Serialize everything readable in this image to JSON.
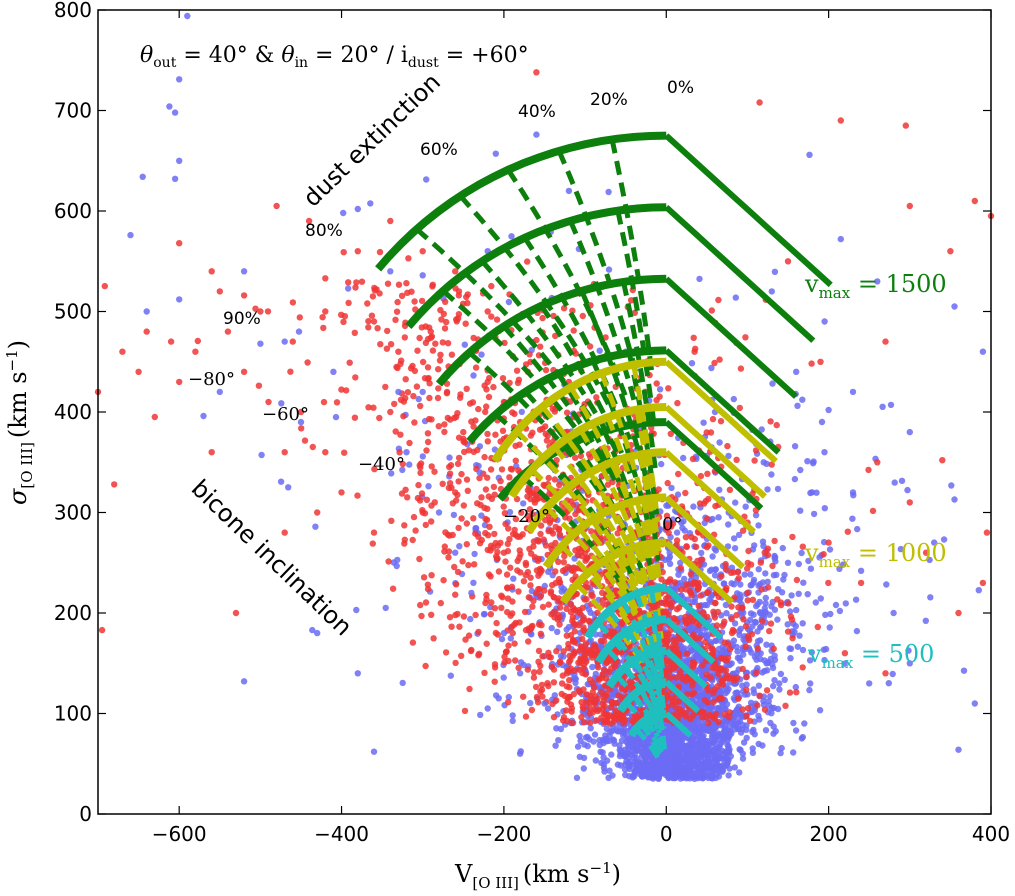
{
  "chart_data": {
    "type": "scatter",
    "title": "θout = 40° & θin = 20° / idust = +60°",
    "title_parts": {
      "a": "θ",
      "a_sub": "out",
      "b": " = 40° & ",
      "c": "θ",
      "c_sub": "in",
      "d": " = 20° / i",
      "d_sub": "dust",
      "e": " = +60°"
    },
    "xlabel": {
      "main": "V",
      "sub": "[O III]",
      "unit": "(km s",
      "sup": "−1",
      "close": ")"
    },
    "ylabel": {
      "main": "σ",
      "sub": "[O III]",
      "unit": "(km s",
      "sup": "−1",
      "close": ")"
    },
    "xlim": [
      -700,
      400
    ],
    "ylim": [
      0,
      800
    ],
    "xticks": [
      -600,
      -400,
      -200,
      0,
      200,
      400
    ],
    "xtick_labels": [
      "−600",
      "−400",
      "−200",
      "0",
      "200",
      "400"
    ],
    "yticks": [
      0,
      100,
      200,
      300,
      400,
      500,
      600,
      700,
      800
    ],
    "ytick_labels": [
      "0",
      "100",
      "200",
      "300",
      "400",
      "500",
      "600",
      "700",
      "800"
    ],
    "scatter_colors": {
      "blue": "#6b6bf5",
      "red": "#f03535"
    },
    "scatter_points": {
      "blue": [
        [
          -612,
          704
        ],
        [
          -590,
          794
        ],
        [
          -600,
          731
        ],
        [
          -645,
          634
        ],
        [
          -600,
          650
        ],
        [
          -605,
          632
        ],
        [
          -660,
          576
        ],
        [
          -398,
          598
        ],
        [
          -380,
          602
        ],
        [
          -260,
          612
        ],
        [
          -210,
          657
        ],
        [
          -160,
          676
        ],
        [
          -300,
          536
        ],
        [
          -430,
          180
        ],
        [
          -520,
          132
        ],
        [
          -570,
          396
        ],
        [
          -600,
          512
        ],
        [
          -500,
          468
        ],
        [
          -470,
          470
        ],
        [
          -330,
          420
        ],
        [
          -280,
          300
        ],
        [
          -260,
          260
        ],
        [
          -240,
          220
        ],
        [
          -200,
          180
        ],
        [
          -180,
          140
        ],
        [
          -150,
          110
        ],
        [
          -360,
          62
        ],
        [
          -110,
          36
        ],
        [
          300,
          150
        ],
        [
          360,
          64
        ],
        [
          390,
          460
        ],
        [
          355,
          505
        ],
        [
          215,
          572
        ],
        [
          195,
          490
        ],
        [
          200,
          402
        ],
        [
          230,
          420
        ],
        [
          300,
          380
        ],
        [
          160,
          440
        ],
        [
          130,
          520
        ],
        [
          150,
          250
        ],
        [
          240,
          242
        ],
        [
          250,
          130
        ],
        [
          260,
          530
        ],
        [
          -380,
          140
        ],
        [
          -220,
          105
        ],
        [
          -180,
          60
        ],
        [
          170,
          90
        ],
        [
          330,
          270
        ],
        [
          -320,
          360
        ],
        [
          -410,
          440
        ],
        [
          -450,
          390
        ],
        [
          -550,
          420
        ],
        [
          -640,
          500
        ],
        [
          -520,
          540
        ],
        [
          -340,
          540
        ],
        [
          -220,
          560
        ],
        [
          -120,
          620
        ],
        [
          -50,
          460
        ],
        [
          60,
          400
        ],
        [
          120,
          350
        ],
        [
          230,
          320
        ],
        [
          280,
          200
        ],
        [
          380,
          110
        ],
        [
          -230,
          340
        ],
        [
          -300,
          420
        ]
      ],
      "red": [
        [
          -160,
          738
        ],
        [
          115,
          708
        ],
        [
          295,
          685
        ],
        [
          215,
          690
        ],
        [
          -700,
          420
        ],
        [
          -695,
          183
        ],
        [
          -680,
          328
        ],
        [
          -670,
          460
        ],
        [
          -650,
          440
        ],
        [
          -630,
          395
        ],
        [
          -640,
          480
        ],
        [
          -610,
          470
        ],
        [
          -600,
          568
        ],
        [
          -580,
          460
        ],
        [
          -550,
          520
        ],
        [
          -560,
          540
        ],
        [
          -520,
          516
        ],
        [
          -480,
          605
        ],
        [
          -440,
          590
        ],
        [
          -420,
          533
        ],
        [
          -520,
          440
        ],
        [
          -490,
          410
        ],
        [
          -450,
          400
        ],
        [
          -470,
          360
        ],
        [
          -420,
          360
        ],
        [
          -400,
          320
        ],
        [
          -360,
          280
        ],
        [
          -340,
          400
        ],
        [
          -300,
          300
        ],
        [
          -260,
          320
        ],
        [
          -240,
          460
        ],
        [
          -200,
          260
        ],
        [
          -180,
          340
        ],
        [
          -160,
          220
        ],
        [
          -360,
          490
        ],
        [
          -330,
          460
        ],
        [
          -310,
          510
        ],
        [
          -290,
          480
        ],
        [
          -270,
          420
        ],
        [
          -250,
          380
        ],
        [
          -220,
          430
        ],
        [
          -200,
          410
        ],
        [
          -180,
          390
        ],
        [
          -140,
          370
        ],
        [
          -120,
          330
        ],
        [
          -100,
          300
        ],
        [
          -80,
          270
        ],
        [
          -60,
          240
        ],
        [
          -40,
          280
        ],
        [
          -20,
          300
        ],
        [
          20,
          260
        ],
        [
          40,
          230
        ],
        [
          60,
          210
        ],
        [
          80,
          240
        ],
        [
          100,
          220
        ],
        [
          -530,
          200
        ],
        [
          -470,
          280
        ],
        [
          -430,
          300
        ],
        [
          260,
          350
        ],
        [
          320,
          260
        ],
        [
          340,
          352
        ],
        [
          360,
          200
        ],
        [
          390,
          230
        ],
        [
          395,
          280
        ],
        [
          400,
          595
        ],
        [
          380,
          610
        ],
        [
          350,
          560
        ],
        [
          300,
          605
        ],
        [
          270,
          470
        ],
        [
          150,
          550
        ],
        [
          190,
          450
        ],
        [
          200,
          270
        ],
        [
          220,
          160
        ],
        [
          270,
          140
        ],
        [
          300,
          310
        ],
        [
          240,
          230
        ],
        [
          -120,
          430
        ],
        [
          -80,
          380
        ],
        [
          -140,
          300
        ],
        [
          -100,
          260
        ],
        [
          -60,
          350
        ],
        [
          -20,
          340
        ],
        [
          20,
          300
        ],
        [
          40,
          280
        ],
        [
          -220,
          500
        ],
        [
          -260,
          540
        ],
        [
          -300,
          560
        ],
        [
          -340,
          590
        ],
        [
          -380,
          560
        ],
        [
          -420,
          500
        ],
        [
          -460,
          470
        ],
        [
          -500,
          500
        ],
        [
          -540,
          480
        ],
        [
          -560,
          360
        ],
        [
          -600,
          430
        ]
      ]
    },
    "series": [
      {
        "name": "vmax = 1500",
        "color": "#0d7f0d",
        "label_v": "v",
        "label_sub": "max",
        "label_rest": " = 1500",
        "r_outer": 675,
        "r_inner": 390,
        "v_scale": 0.7,
        "v_min": 0,
        "v_max": 40
      },
      {
        "name": "vmax = 1000",
        "color": "#bfbf00",
        "label_v": "v",
        "label_sub": "max",
        "label_rest": " = 1000",
        "r_outer": 450,
        "r_inner": 270,
        "v_scale": 0.6,
        "v_min": 0,
        "v_max": 20
      },
      {
        "name": "vmax = 500",
        "color": "#20bfbf",
        "label_v": "v",
        "label_sub": "max",
        "label_rest": " = 500",
        "r_outer": 225,
        "r_inner": 100,
        "v_scale": 0.55,
        "v_min": 0,
        "v_max": 20
      }
    ],
    "annotations": {
      "dust_extinction": "dust extinction",
      "bicone_inclination": "bicone inclination",
      "percent_labels": [
        "0%",
        "20%",
        "40%",
        "60%",
        "80%",
        "90%"
      ],
      "angle_labels": [
        "−80°",
        "−60°",
        "−40°",
        "−20°",
        "0°"
      ]
    }
  }
}
